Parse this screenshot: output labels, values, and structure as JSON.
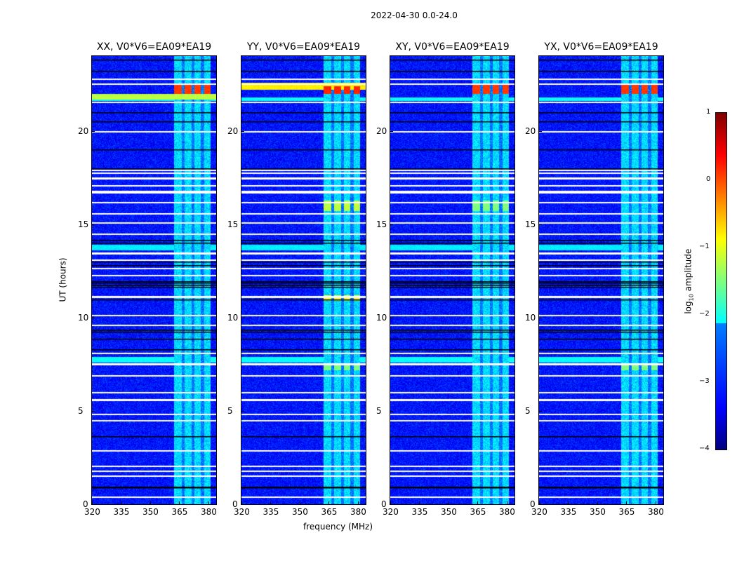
{
  "chart_data": {
    "type": "heatmap",
    "title": "2022-04-30 0.0-24.0",
    "xlabel": "frequency (MHz)",
    "ylabel": "UT (hours)",
    "xlim": [
      320,
      384
    ],
    "ylim": [
      0,
      24
    ],
    "xticks": [
      "320",
      "335",
      "350",
      "365",
      "380"
    ],
    "xtick_values": [
      320,
      335,
      350,
      365,
      380
    ],
    "yticks": [
      "0",
      "5",
      "10",
      "15",
      "20"
    ],
    "ytick_values": [
      0,
      5,
      10,
      15,
      20
    ],
    "panels": [
      {
        "title": "XX, V0*V6=EA09*EA19",
        "hot": [
          {
            "t0": 22.0,
            "t1": 22.5,
            "v": 0.1,
            "band": true
          },
          {
            "t0": 21.7,
            "t1": 22.0,
            "v": -1.2,
            "band": false
          }
        ]
      },
      {
        "title": "YY, V0*V6=EA09*EA19",
        "hot": [
          {
            "t0": 22.2,
            "t1": 22.6,
            "v": -0.8,
            "band": false
          },
          {
            "t0": 22.0,
            "t1": 22.4,
            "v": 0.2,
            "band": true
          },
          {
            "t0": 15.7,
            "t1": 16.3,
            "v": -1.2,
            "band": true
          },
          {
            "t0": 10.9,
            "t1": 11.2,
            "v": -0.9,
            "band": true
          },
          {
            "t0": 7.2,
            "t1": 7.5,
            "v": -1.5,
            "band": true
          }
        ]
      },
      {
        "title": "XY, V0*V6=EA09*EA19",
        "hot": [
          {
            "t0": 22.0,
            "t1": 22.5,
            "v": 0.1,
            "band": true
          },
          {
            "t0": 15.7,
            "t1": 16.3,
            "v": -1.5,
            "band": true
          }
        ]
      },
      {
        "title": "YX, V0*V6=EA09*EA19",
        "hot": [
          {
            "t0": 22.0,
            "t1": 22.5,
            "v": 0.1,
            "band": true
          },
          {
            "t0": 7.2,
            "t1": 7.5,
            "v": -1.5,
            "band": true
          }
        ]
      }
    ],
    "rfi_columns_mhz": [
      [
        362,
        366
      ],
      [
        367.5,
        371
      ],
      [
        372.5,
        376
      ],
      [
        377.5,
        381
      ]
    ],
    "base_log_amplitude": -3.3,
    "rfi_log_amplitude": -2.3,
    "cyan_rows_hours": [
      [
        7.6,
        7.9,
        -2.1
      ],
      [
        13.6,
        13.9,
        -2.2
      ],
      [
        21.6,
        21.8,
        -2.1
      ]
    ],
    "flagged_white_rows_hours": [
      0.4,
      1.55,
      1.8,
      2.05,
      2.9,
      4.5,
      4.85,
      5.6,
      5.65,
      6.0,
      6.9,
      7.5,
      7.55,
      8.1,
      9.6,
      10.15,
      11.1,
      11.15,
      12.3,
      12.65,
      13.1,
      13.45,
      13.5,
      14.5,
      15.1,
      15.6,
      16.2,
      16.7,
      16.8,
      17.1,
      17.45,
      17.5,
      17.75,
      17.9,
      20.0,
      21.55,
      22.55,
      22.8
    ],
    "black_rows_hours": [
      0.9,
      0.95,
      3.65,
      8.3,
      8.85,
      9.25,
      9.35,
      10.95,
      11.65,
      11.75,
      11.85,
      11.95,
      12.8,
      13.0,
      14.0,
      14.15,
      18.0,
      19.0,
      20.5,
      21.0,
      23.2,
      23.8
    ],
    "colorbar": {
      "label": "log10 amplitude",
      "label_main": "log",
      "label_sub": "10",
      "label_rest": " amplitude",
      "range": [
        -4,
        1
      ],
      "ticks": [
        "1",
        "0",
        "−1",
        "−2",
        "−3",
        "−4"
      ],
      "tick_values": [
        1,
        0,
        -1,
        -2,
        -3,
        -4
      ]
    }
  }
}
